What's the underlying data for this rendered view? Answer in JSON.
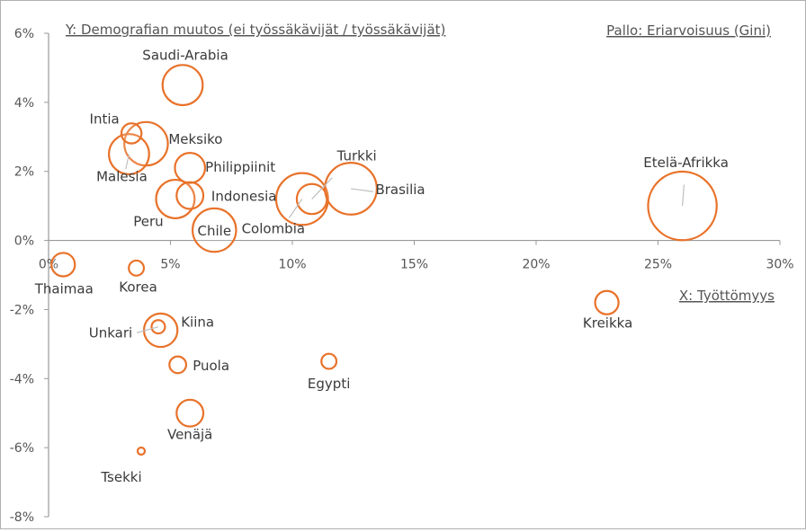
{
  "chart_data": {
    "type": "scatter",
    "subtype": "bubble",
    "title": "",
    "ylabel": "Y: Demografian muutos (ei työssäkävijät / työssäkävijät)",
    "xlabel": "X: Työttömyys",
    "size_label": "Pallo: Eriarvoisuus (Gini)",
    "xlim": [
      0,
      30
    ],
    "ylim": [
      -8,
      6
    ],
    "x_ticks": [
      0,
      5,
      10,
      15,
      20,
      25,
      30
    ],
    "x_tick_labels": [
      "0%",
      "5%",
      "10%",
      "15%",
      "20%",
      "25%",
      "30%"
    ],
    "y_ticks": [
      -8,
      -6,
      -4,
      -2,
      0,
      2,
      4,
      6
    ],
    "y_tick_labels": [
      "-8%",
      "-6%",
      "-4%",
      "-2%",
      "0%",
      "2%",
      "4%",
      "6%"
    ],
    "grid": false,
    "bubble_color": "#e8722a",
    "points": [
      {
        "label": "Saudi-Arabia",
        "x": 5.5,
        "y": 4.5,
        "gini": 46
      },
      {
        "label": "Intia",
        "x": 3.4,
        "y": 3.1,
        "gini": 34
      },
      {
        "label": "Meksiko",
        "x": 4.0,
        "y": 2.8,
        "gini": 48
      },
      {
        "label": "Malesia",
        "x": 3.3,
        "y": 2.5,
        "gini": 46
      },
      {
        "label": "Philippiinit",
        "x": 5.8,
        "y": 2.1,
        "gini": 40
      },
      {
        "label": "Indonesia",
        "x": 5.8,
        "y": 1.3,
        "gini": 38
      },
      {
        "label": "Peru",
        "x": 5.2,
        "y": 1.2,
        "gini": 45
      },
      {
        "label": "Chile",
        "x": 6.8,
        "y": 0.3,
        "gini": 48
      },
      {
        "label": "Turkki",
        "x": 10.8,
        "y": 1.2,
        "gini": 40
      },
      {
        "label": "Colombia",
        "x": 10.4,
        "y": 1.2,
        "gini": 53
      },
      {
        "label": "Brasilia",
        "x": 12.4,
        "y": 1.5,
        "gini": 53
      },
      {
        "label": "Etelä-Afrikka",
        "x": 26.0,
        "y": 1.0,
        "gini": 63
      },
      {
        "label": "Thaimaa",
        "x": 0.6,
        "y": -0.7,
        "gini": 36
      },
      {
        "label": "Korea",
        "x": 3.6,
        "y": -0.8,
        "gini": 31
      },
      {
        "label": "Kiina",
        "x": 4.6,
        "y": -2.6,
        "gini": 42
      },
      {
        "label": "Unkari",
        "x": 4.5,
        "y": -2.5,
        "gini": 30
      },
      {
        "label": "Puola",
        "x": 5.3,
        "y": -3.6,
        "gini": 32
      },
      {
        "label": "Egypti",
        "x": 11.5,
        "y": -3.5,
        "gini": 31
      },
      {
        "label": "Venäjä",
        "x": 5.8,
        "y": -5.0,
        "gini": 38
      },
      {
        "label": "Tsekki",
        "x": 3.8,
        "y": -6.1,
        "gini": 26
      },
      {
        "label": "Kreikka",
        "x": 22.9,
        "y": -1.8,
        "gini": 36
      }
    ]
  }
}
